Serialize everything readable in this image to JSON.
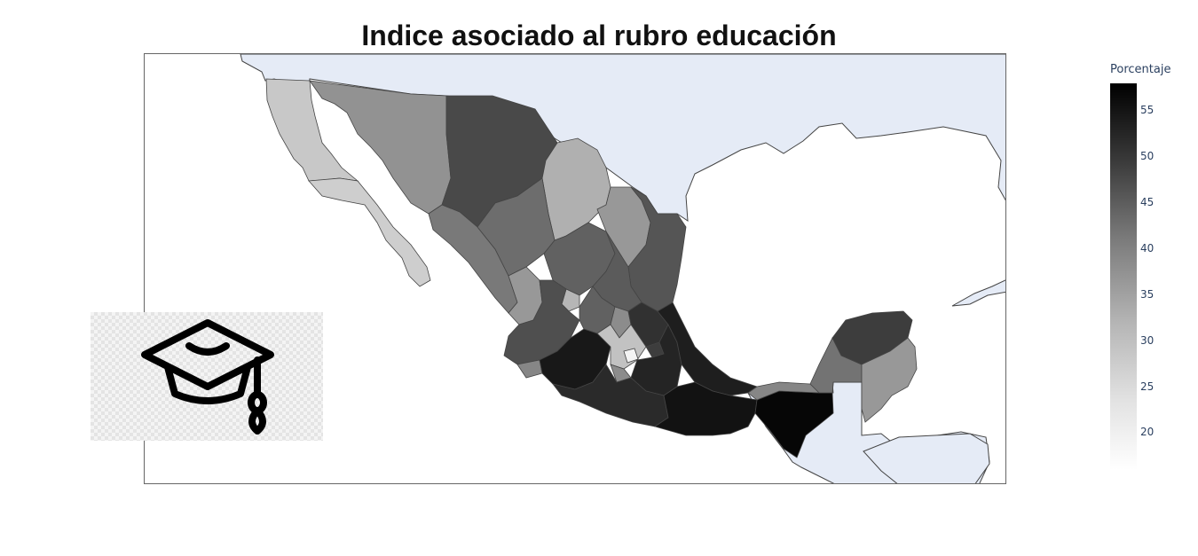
{
  "title": "Indice asociado al rubro educación",
  "colorbar": {
    "title": "Porcentaje",
    "ticks": [
      "55",
      "50",
      "45",
      "40",
      "35",
      "30",
      "25",
      "20"
    ],
    "range": [
      16,
      58
    ],
    "colorscale": [
      "#ffffff",
      "#000000"
    ]
  },
  "map": {
    "type": "choropleth",
    "region": "Mexico",
    "ocean_color": "#ffffff",
    "neighbor_land_color": "#e5ebf6",
    "border_color": "#444444"
  },
  "chart_data": {
    "type": "choropleth",
    "title": "Indice asociado al rubro educación",
    "legend_title": "Porcentaje",
    "value_range": [
      16,
      58
    ],
    "colorbar_ticks": [
      55,
      50,
      45,
      40,
      35,
      30,
      25,
      20
    ],
    "regions": [
      {
        "name": "Baja California",
        "value": 25
      },
      {
        "name": "Baja California Sur",
        "value": 24
      },
      {
        "name": "Sonora",
        "value": 34
      },
      {
        "name": "Chihuahua",
        "value": 46
      },
      {
        "name": "Coahuila",
        "value": 29
      },
      {
        "name": "Nuevo León",
        "value": 33
      },
      {
        "name": "Tamaulipas",
        "value": 44
      },
      {
        "name": "Sinaloa",
        "value": 38
      },
      {
        "name": "Durango",
        "value": 40
      },
      {
        "name": "Zacatecas",
        "value": 42
      },
      {
        "name": "San Luis Potosí",
        "value": 43
      },
      {
        "name": "Nayarit",
        "value": 33
      },
      {
        "name": "Aguascalientes",
        "value": 28
      },
      {
        "name": "Jalisco",
        "value": 45
      },
      {
        "name": "Guanajuato",
        "value": 42
      },
      {
        "name": "Querétaro",
        "value": 35
      },
      {
        "name": "Hidalgo",
        "value": 50
      },
      {
        "name": "Colima",
        "value": 36
      },
      {
        "name": "Michoacán",
        "value": 54
      },
      {
        "name": "Estado de México",
        "value": 26
      },
      {
        "name": "Ciudad de México",
        "value": 18
      },
      {
        "name": "Tlaxcala",
        "value": 48
      },
      {
        "name": "Morelos",
        "value": 35
      },
      {
        "name": "Puebla",
        "value": 52
      },
      {
        "name": "Veracruz",
        "value": 53
      },
      {
        "name": "Guerrero",
        "value": 51
      },
      {
        "name": "Oaxaca",
        "value": 55
      },
      {
        "name": "Chiapas",
        "value": 57
      },
      {
        "name": "Tabasco",
        "value": 36
      },
      {
        "name": "Campeche",
        "value": 39
      },
      {
        "name": "Yucatán",
        "value": 48
      },
      {
        "name": "Quintana Roo",
        "value": 33
      }
    ]
  },
  "inset_image": {
    "icon": "graduation-cap-icon"
  }
}
